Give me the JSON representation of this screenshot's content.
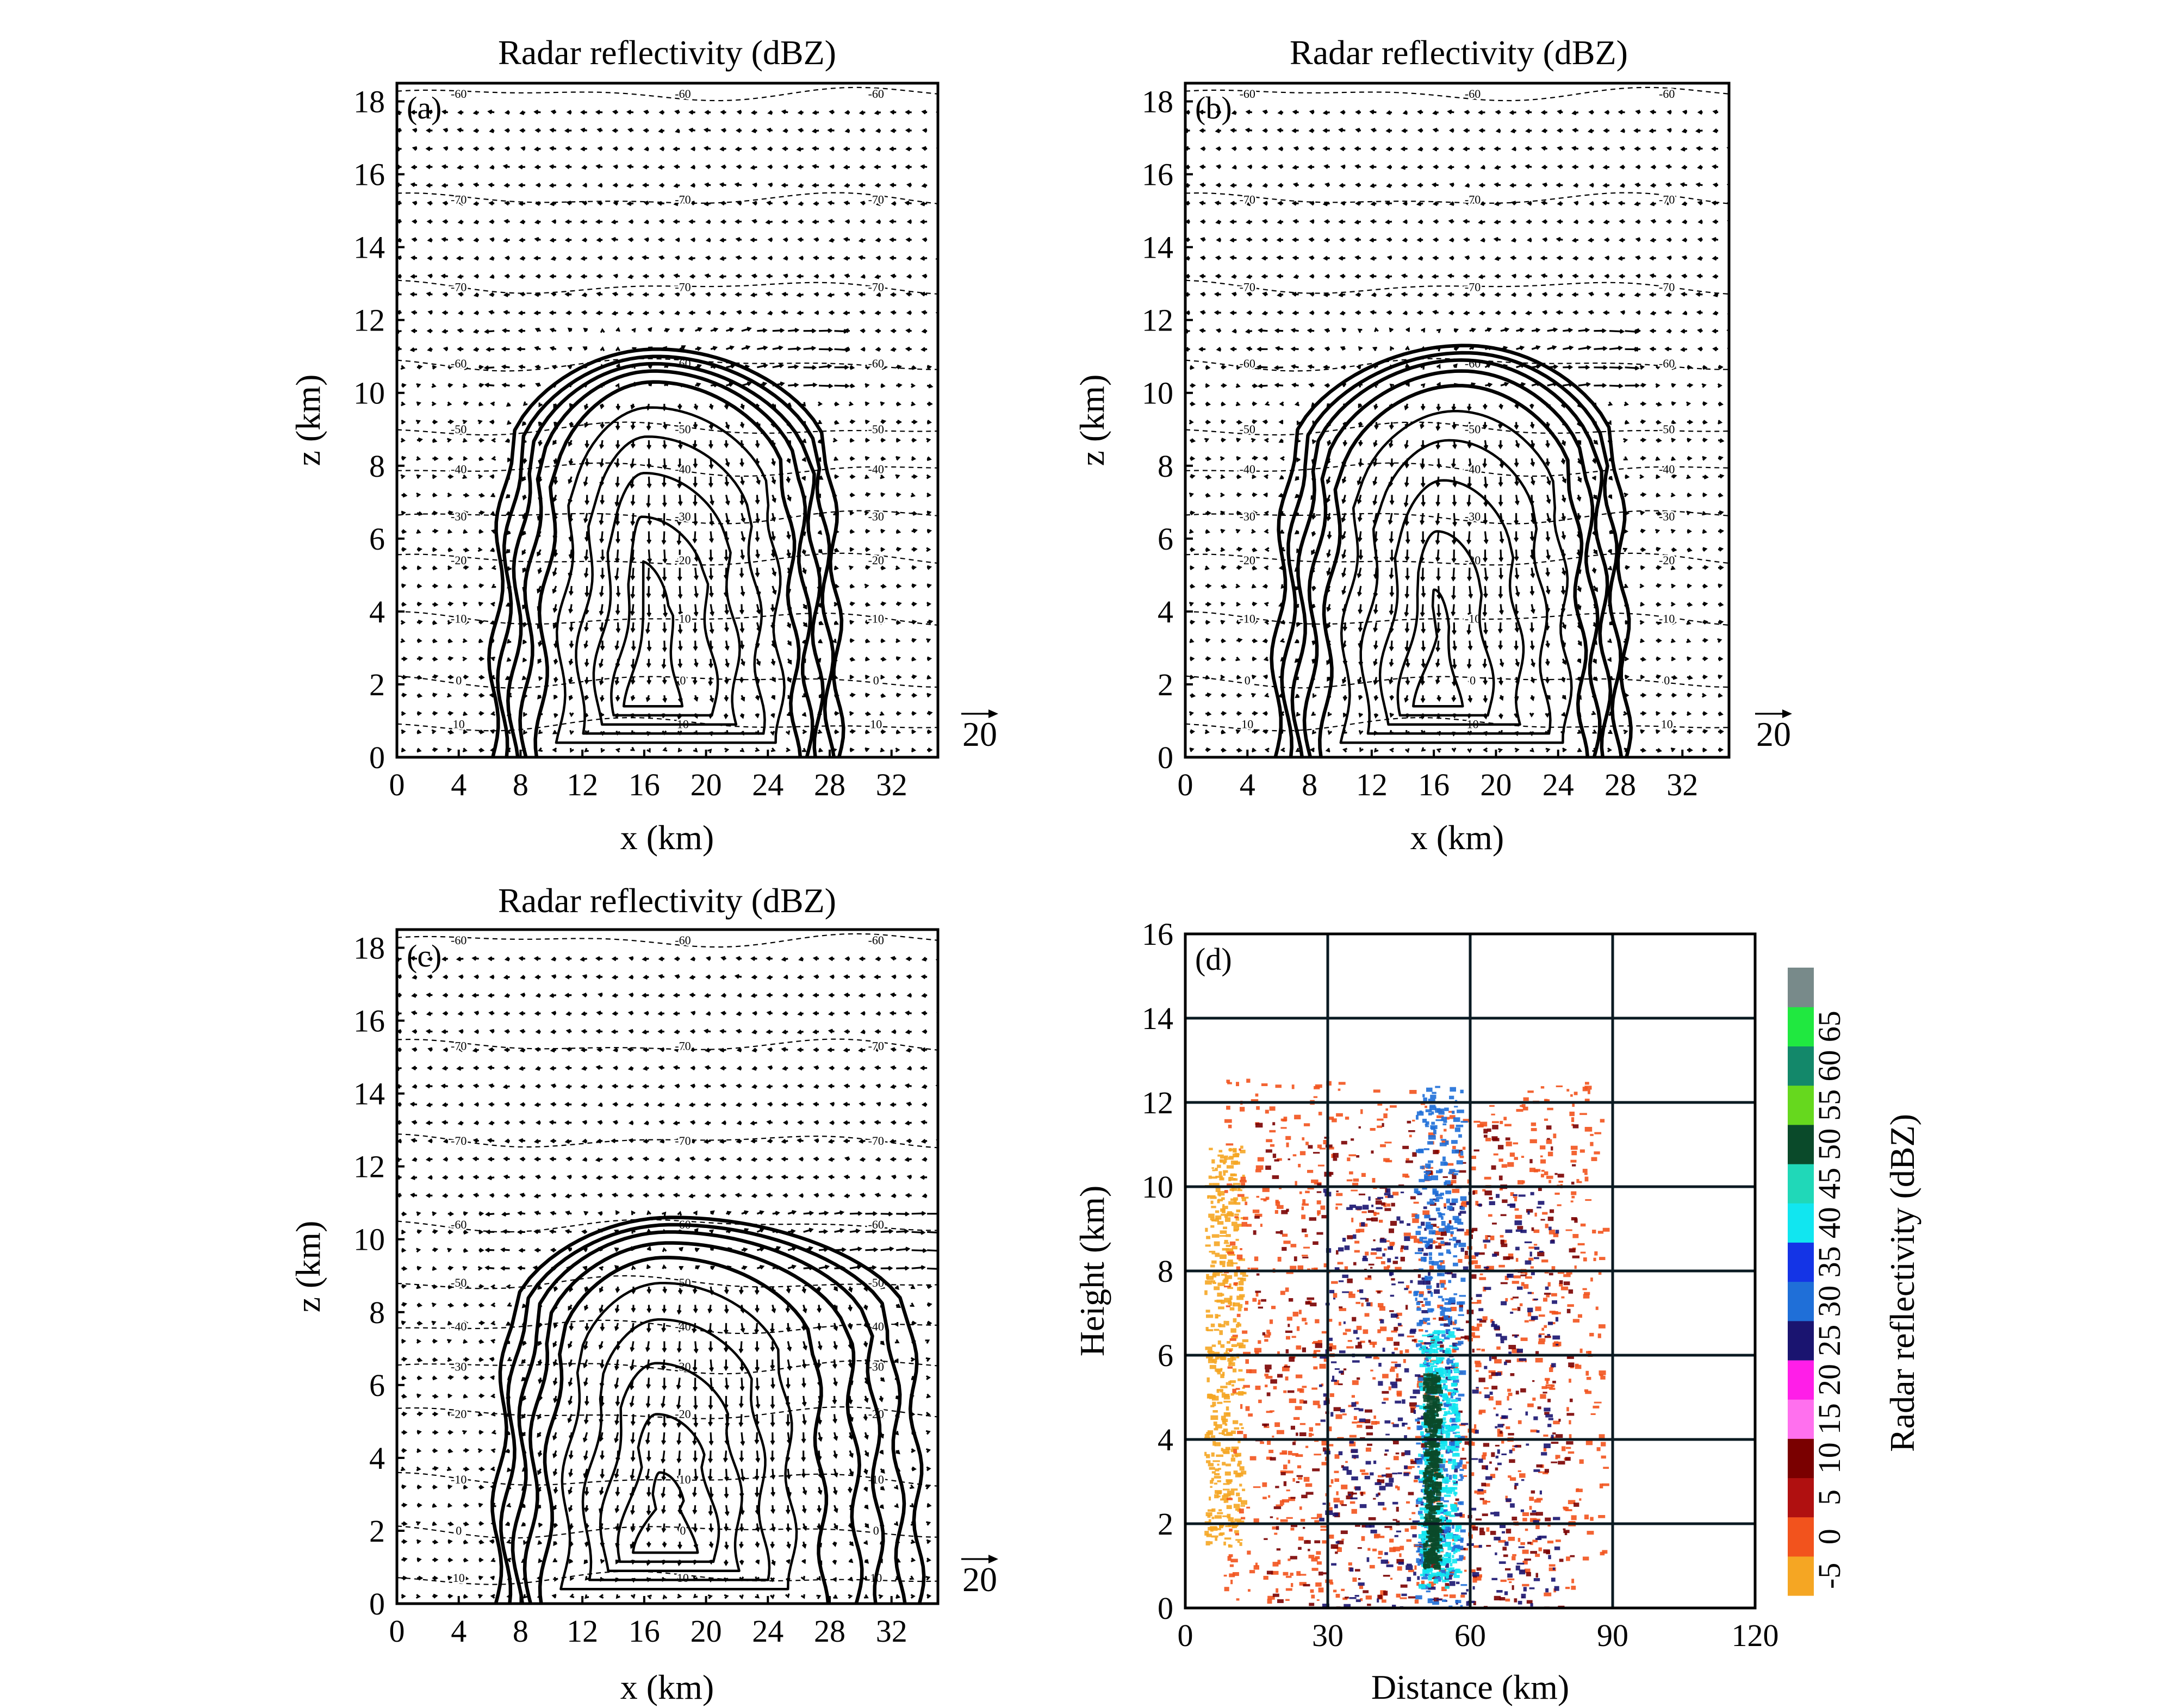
{
  "chart_data": [
    {
      "panel": "(a)",
      "type": "contour",
      "title": "Radar reflectivity (dBZ)",
      "xlabel": "x (km)",
      "ylabel": "z (km)",
      "xlim": [
        0,
        35
      ],
      "ylim": [
        0,
        18.5
      ],
      "xticks": [
        "0",
        "4",
        "8",
        "12",
        "16",
        "20",
        "24",
        "28",
        "32"
      ],
      "yticks": [
        "0",
        "2",
        "4",
        "6",
        "8",
        "10",
        "12",
        "14",
        "16",
        "18"
      ],
      "reference_vector": "20",
      "reflectivity_contours": [
        {
          "dbz": 0,
          "xl": 6.2,
          "xr": 28.6,
          "top": 11.2,
          "apex": 16.8
        },
        {
          "dbz": 5,
          "xl": 6.8,
          "xr": 28.0,
          "top": 11.0,
          "apex": 16.8
        },
        {
          "dbz": 10,
          "xl": 7.5,
          "xr": 27.3,
          "top": 10.8,
          "apex": 16.6
        },
        {
          "dbz": 15,
          "xl": 8.3,
          "xr": 26.6,
          "top": 10.6,
          "apex": 16.6
        },
        {
          "dbz": 20,
          "xl": 9.3,
          "xr": 25.8,
          "top": 10.3,
          "apex": 16.6
        },
        {
          "dbz": 25,
          "xl": 10.5,
          "xr": 24.8,
          "top": 9.6,
          "apex": 16.4
        },
        {
          "dbz": 30,
          "xl": 11.8,
          "xr": 23.5,
          "top": 8.8,
          "apex": 16.2
        },
        {
          "dbz": 35,
          "xl": 13.0,
          "xr": 22.0,
          "top": 7.8,
          "apex": 16.0
        },
        {
          "dbz": 40,
          "xl": 14.2,
          "xr": 20.5,
          "top": 6.6,
          "apex": 15.8
        },
        {
          "dbz": 45,
          "xl": 15.0,
          "xr": 18.2,
          "top": 5.4,
          "apex": 15.6
        }
      ],
      "temperature_isotherms": [
        {
          "label": "-60",
          "z": 18.2
        },
        {
          "label": "-70",
          "z": 15.3
        },
        {
          "label": "-70",
          "z": 12.9
        },
        {
          "label": "-60",
          "z": 10.8
        },
        {
          "label": "-50",
          "z": 9.0
        },
        {
          "label": "-40",
          "z": 7.9
        },
        {
          "label": "-30",
          "z": 6.6
        },
        {
          "label": "-20",
          "z": 5.4
        },
        {
          "label": "-10",
          "z": 3.8
        },
        {
          "label": "0",
          "z": 2.1
        },
        {
          "label": "10",
          "z": 0.9
        }
      ]
    },
    {
      "panel": "(b)",
      "type": "contour",
      "title": "Radar reflectivity (dBZ)",
      "xlabel": "x (km)",
      "ylabel": "z (km)",
      "xlim": [
        0,
        35
      ],
      "ylim": [
        0,
        18.5
      ],
      "xticks": [
        "0",
        "4",
        "8",
        "12",
        "16",
        "20",
        "24",
        "28",
        "32"
      ],
      "yticks": [
        "0",
        "2",
        "4",
        "6",
        "8",
        "10",
        "12",
        "14",
        "16",
        "18"
      ],
      "reference_vector": "20",
      "reflectivity_contours": [
        {
          "dbz": 0,
          "xl": 5.8,
          "xr": 28.4,
          "top": 11.3,
          "apex": 18.0
        },
        {
          "dbz": 5,
          "xl": 6.5,
          "xr": 27.8,
          "top": 11.1,
          "apex": 18.0
        },
        {
          "dbz": 10,
          "xl": 7.2,
          "xr": 27.1,
          "top": 10.9,
          "apex": 17.8
        },
        {
          "dbz": 15,
          "xl": 8.0,
          "xr": 26.4,
          "top": 10.6,
          "apex": 17.8
        },
        {
          "dbz": 20,
          "xl": 9.0,
          "xr": 25.6,
          "top": 10.2,
          "apex": 17.6
        },
        {
          "dbz": 25,
          "xl": 10.2,
          "xr": 24.6,
          "top": 9.5,
          "apex": 17.4
        },
        {
          "dbz": 30,
          "xl": 11.5,
          "xr": 23.2,
          "top": 8.7,
          "apex": 17.0
        },
        {
          "dbz": 35,
          "xl": 12.8,
          "xr": 21.6,
          "top": 7.6,
          "apex": 16.6
        },
        {
          "dbz": 40,
          "xl": 14.0,
          "xr": 19.6,
          "top": 6.2,
          "apex": 16.2
        },
        {
          "dbz": 45,
          "xl": 15.0,
          "xr": 17.6,
          "top": 4.6,
          "apex": 16.0
        }
      ],
      "temperature_isotherms": [
        {
          "label": "-60",
          "z": 18.2
        },
        {
          "label": "-70",
          "z": 15.3
        },
        {
          "label": "-70",
          "z": 12.9
        },
        {
          "label": "-60",
          "z": 10.8
        },
        {
          "label": "-50",
          "z": 9.0
        },
        {
          "label": "-40",
          "z": 7.9
        },
        {
          "label": "-30",
          "z": 6.6
        },
        {
          "label": "-20",
          "z": 5.4
        },
        {
          "label": "-10",
          "z": 3.8
        },
        {
          "label": "0",
          "z": 2.1
        },
        {
          "label": "10",
          "z": 0.9
        }
      ]
    },
    {
      "panel": "(c)",
      "type": "contour",
      "title": "Radar reflectivity (dBZ)",
      "xlabel": "x (km)",
      "ylabel": "z (km)",
      "xlim": [
        0,
        35
      ],
      "ylim": [
        0,
        18.5
      ],
      "xticks": [
        "0",
        "4",
        "8",
        "12",
        "16",
        "20",
        "24",
        "28",
        "32"
      ],
      "yticks": [
        "0",
        "2",
        "4",
        "6",
        "8",
        "10",
        "12",
        "14",
        "16",
        "18"
      ],
      "reference_vector": "20",
      "reflectivity_contours": [
        {
          "dbz": 0,
          "xl": 6.4,
          "xr": 33.8,
          "top": 10.6,
          "apex": 17.8
        },
        {
          "dbz": 5,
          "xl": 7.0,
          "xr": 32.6,
          "top": 10.4,
          "apex": 17.8
        },
        {
          "dbz": 10,
          "xl": 7.8,
          "xr": 31.2,
          "top": 10.2,
          "apex": 17.6
        },
        {
          "dbz": 15,
          "xl": 8.6,
          "xr": 29.8,
          "top": 9.9,
          "apex": 17.6
        },
        {
          "dbz": 20,
          "xl": 9.6,
          "xr": 27.6,
          "top": 9.5,
          "apex": 17.4
        },
        {
          "dbz": 25,
          "xl": 10.8,
          "xr": 25.6,
          "top": 8.8,
          "apex": 17.2
        },
        {
          "dbz": 30,
          "xl": 12.2,
          "xr": 23.8,
          "top": 7.8,
          "apex": 17.0
        },
        {
          "dbz": 35,
          "xl": 13.4,
          "xr": 22.2,
          "top": 6.6,
          "apex": 16.8
        },
        {
          "dbz": 40,
          "xl": 14.6,
          "xr": 20.6,
          "top": 5.2,
          "apex": 16.8
        },
        {
          "dbz": 45,
          "xl": 15.6,
          "xr": 19.2,
          "top": 3.6,
          "apex": 17.0
        }
      ],
      "temperature_isotherms": [
        {
          "label": "-60",
          "z": 18.2
        },
        {
          "label": "-70",
          "z": 15.3
        },
        {
          "label": "-70",
          "z": 12.7
        },
        {
          "label": "-60",
          "z": 10.4
        },
        {
          "label": "-50",
          "z": 8.8
        },
        {
          "label": "-40",
          "z": 7.6
        },
        {
          "label": "-30",
          "z": 6.5
        },
        {
          "label": "-20",
          "z": 5.2
        },
        {
          "label": "-10",
          "z": 3.4
        },
        {
          "label": "0",
          "z": 2.0
        },
        {
          "label": "10",
          "z": 0.7
        }
      ]
    },
    {
      "panel": "(d)",
      "type": "heatmap",
      "xlabel": "Distance (km)",
      "ylabel": "Height (km)",
      "xlim": [
        0,
        120
      ],
      "ylim": [
        0,
        16
      ],
      "xticks": [
        "0",
        "30",
        "60",
        "90",
        "120"
      ],
      "yticks": [
        "0",
        "2",
        "4",
        "6",
        "8",
        "10",
        "12",
        "14",
        "16"
      ],
      "colorbar_label": "Radar reflectivity (dBZ)",
      "colorbar_ticks": [
        "-5",
        "0",
        "5",
        "10",
        "15",
        "20",
        "25",
        "30",
        "35",
        "40",
        "45",
        "50",
        "55",
        "60",
        "65"
      ],
      "colorbar_colors": [
        "#f5a623",
        "#f2531d",
        "#b01010",
        "#7a0000",
        "#ff70ee",
        "#ff1ee8",
        "#1a1470",
        "#1f6fd8",
        "#1434e6",
        "#11e6f0",
        "#20d8b8",
        "#0a4a2a",
        "#66d81e",
        "#13886a",
        "#20e840",
        "#788a8a"
      ],
      "echo_bands": [
        {
          "dbz": "-5",
          "x0": 4,
          "x1": 12,
          "z0": 1.5,
          "z1": 11.0
        },
        {
          "dbz": "0",
          "x0": 8,
          "x1": 88,
          "z0": 0.2,
          "z1": 12.6
        },
        {
          "dbz": "10",
          "x0": 14,
          "x1": 82,
          "z0": 0.0,
          "z1": 11.6
        },
        {
          "dbz": "25",
          "x0": 28,
          "x1": 78,
          "z0": 0.0,
          "z1": 10.0
        },
        {
          "dbz": "30",
          "x0": 48,
          "x1": 58,
          "z0": 0.0,
          "z1": 12.4
        },
        {
          "dbz": "40",
          "x0": 49,
          "x1": 57,
          "z0": 0.5,
          "z1": 6.6
        },
        {
          "dbz": "50",
          "x0": 50,
          "x1": 53,
          "z0": 1.0,
          "z1": 5.6
        }
      ]
    }
  ],
  "panel_labels": {
    "a": "(a)",
    "b": "(b)",
    "c": "(c)",
    "d": "(d)"
  }
}
